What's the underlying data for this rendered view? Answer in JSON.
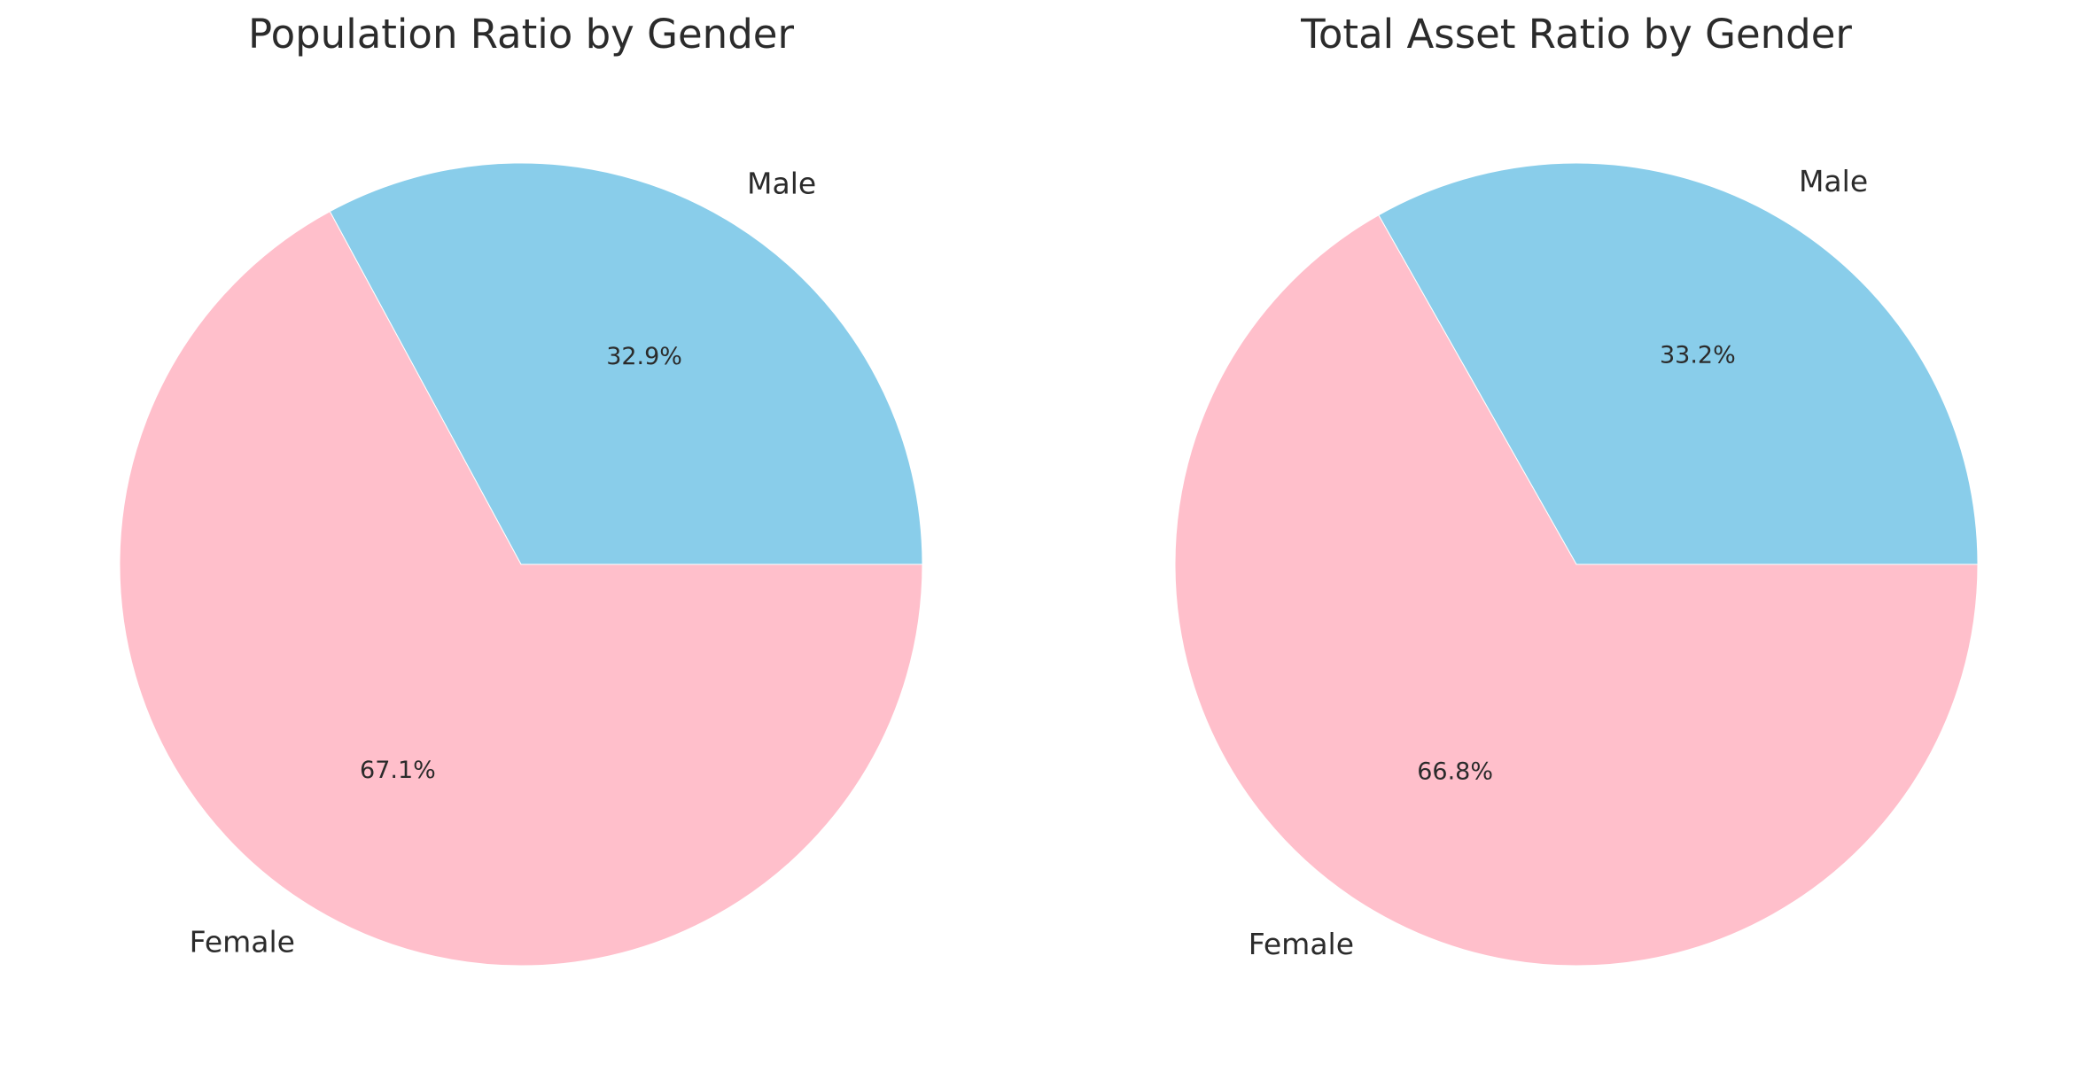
{
  "chart_data": [
    {
      "type": "pie",
      "title": "Population Ratio by Gender",
      "labels": [
        "Male",
        "Female"
      ],
      "values": [
        32.9,
        67.1
      ],
      "value_labels": [
        "32.9%",
        "67.1%"
      ],
      "colors": [
        "#89CDEA",
        "#FFBFCB"
      ],
      "start_angle_deg": 0,
      "direction": "counterclockwise"
    },
    {
      "type": "pie",
      "title": "Total Asset Ratio by Gender",
      "labels": [
        "Male",
        "Female"
      ],
      "values": [
        33.2,
        66.8
      ],
      "value_labels": [
        "33.2%",
        "66.8%"
      ],
      "colors": [
        "#89CDEA",
        "#FFBFCB"
      ],
      "start_angle_deg": 0,
      "direction": "counterclockwise"
    }
  ]
}
